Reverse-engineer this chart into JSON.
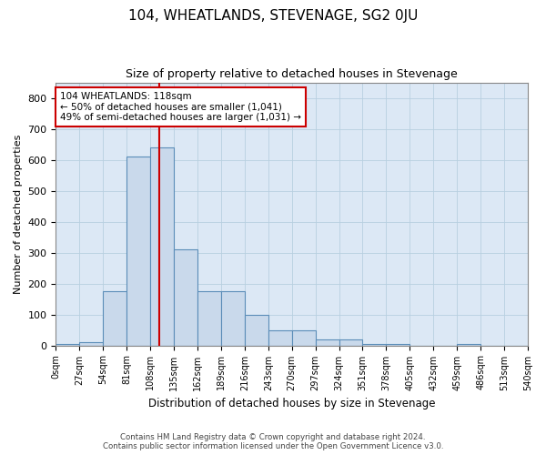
{
  "title": "104, WHEATLANDS, STEVENAGE, SG2 0JU",
  "subtitle": "Size of property relative to detached houses in Stevenage",
  "xlabel": "Distribution of detached houses by size in Stevenage",
  "ylabel": "Number of detached properties",
  "bin_edges": [
    0,
    27,
    54,
    81,
    108,
    135,
    162,
    189,
    216,
    243,
    270,
    297,
    324,
    351,
    378,
    405,
    432,
    459,
    486,
    513,
    540
  ],
  "bar_heights": [
    5,
    10,
    175,
    610,
    640,
    310,
    175,
    175,
    100,
    50,
    50,
    20,
    20,
    5,
    5,
    0,
    0,
    5,
    0,
    0
  ],
  "bar_color": "#c9d9eb",
  "bar_edge_color": "#5b8db8",
  "property_size": 118,
  "vline_color": "#cc0000",
  "annotation_text": "104 WHEATLANDS: 118sqm\n← 50% of detached houses are smaller (1,041)\n49% of semi-detached houses are larger (1,031) →",
  "annotation_box_color": "#ffffff",
  "annotation_box_edge": "#cc0000",
  "ylim": [
    0,
    850
  ],
  "yticks": [
    0,
    100,
    200,
    300,
    400,
    500,
    600,
    700,
    800
  ],
  "grid_color": "#b8cfe0",
  "background_color": "#dce8f5",
  "footer_line1": "Contains HM Land Registry data © Crown copyright and database right 2024.",
  "footer_line2": "Contains public sector information licensed under the Open Government Licence v3.0."
}
